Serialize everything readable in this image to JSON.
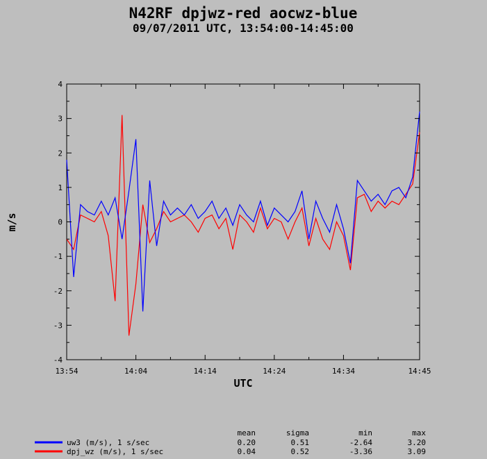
{
  "chart_data": {
    "type": "line",
    "title": "N42RF dpjwz-red aocwz-blue",
    "subtitle": "09/07/2011  UTC, 13:54:00-14:45:00",
    "xlabel": "UTC",
    "ylabel": "m/s",
    "x_ticks": [
      "13:54",
      "14:04",
      "14:14",
      "14:24",
      "14:34",
      "14:45"
    ],
    "xlim": [
      "13:54",
      "14:45"
    ],
    "y_ticks": [
      4,
      3,
      2,
      1,
      0,
      -1,
      -2,
      -3,
      -4
    ],
    "ylim": [
      -4,
      4
    ],
    "grid": false,
    "stats_headers": [
      "mean",
      "sigma",
      "min",
      "max"
    ],
    "series": [
      {
        "name": "uw3 (m/s), 1 s/sec",
        "color": "#0000ff",
        "mean": "0.20",
        "sigma": "0.51",
        "min": "-2.64",
        "max": "3.20",
        "x": [
          "13:54",
          "13:55",
          "13:56",
          "13:57",
          "13:58",
          "13:59",
          "14:00",
          "14:01",
          "14:02",
          "14:03",
          "14:04",
          "14:05",
          "14:06",
          "14:07",
          "14:08",
          "14:09",
          "14:10",
          "14:11",
          "14:12",
          "14:13",
          "14:14",
          "14:15",
          "14:16",
          "14:17",
          "14:18",
          "14:19",
          "14:20",
          "14:21",
          "14:22",
          "14:23",
          "14:24",
          "14:25",
          "14:26",
          "14:27",
          "14:28",
          "14:29",
          "14:30",
          "14:31",
          "14:32",
          "14:33",
          "14:34",
          "14:35",
          "14:36",
          "14:37",
          "14:38",
          "14:39",
          "14:40",
          "14:41",
          "14:42",
          "14:43",
          "14:44",
          "14:45"
        ],
        "values": [
          1.8,
          -1.6,
          0.5,
          0.3,
          0.2,
          0.6,
          0.2,
          0.7,
          -0.5,
          0.9,
          2.4,
          -2.6,
          1.2,
          -0.7,
          0.6,
          0.2,
          0.4,
          0.2,
          0.5,
          0.1,
          0.3,
          0.6,
          0.1,
          0.4,
          -0.1,
          0.5,
          0.2,
          0.0,
          0.6,
          -0.1,
          0.4,
          0.2,
          0.0,
          0.3,
          0.9,
          -0.5,
          0.6,
          0.1,
          -0.3,
          0.5,
          -0.2,
          -1.2,
          1.2,
          0.9,
          0.6,
          0.8,
          0.5,
          0.9,
          1.0,
          0.7,
          1.3,
          3.2
        ]
      },
      {
        "name": "dpj_wz (m/s), 1 s/sec",
        "color": "#ff0000",
        "mean": "0.04",
        "sigma": "0.52",
        "min": "-3.36",
        "max": "3.09",
        "x": [
          "13:54",
          "13:55",
          "13:56",
          "13:57",
          "13:58",
          "13:59",
          "14:00",
          "14:01",
          "14:02",
          "14:03",
          "14:04",
          "14:05",
          "14:06",
          "14:07",
          "14:08",
          "14:09",
          "14:10",
          "14:11",
          "14:12",
          "14:13",
          "14:14",
          "14:15",
          "14:16",
          "14:17",
          "14:18",
          "14:19",
          "14:20",
          "14:21",
          "14:22",
          "14:23",
          "14:24",
          "14:25",
          "14:26",
          "14:27",
          "14:28",
          "14:29",
          "14:30",
          "14:31",
          "14:32",
          "14:33",
          "14:34",
          "14:35",
          "14:36",
          "14:37",
          "14:38",
          "14:39",
          "14:40",
          "14:41",
          "14:42",
          "14:43",
          "14:44",
          "14:45"
        ],
        "values": [
          -0.5,
          -0.8,
          0.2,
          0.1,
          0.0,
          0.3,
          -0.4,
          -2.3,
          3.1,
          -3.3,
          -1.8,
          0.5,
          -0.6,
          -0.2,
          0.3,
          0.0,
          0.1,
          0.2,
          0.0,
          -0.3,
          0.1,
          0.2,
          -0.2,
          0.1,
          -0.8,
          0.2,
          0.0,
          -0.3,
          0.4,
          -0.2,
          0.1,
          0.0,
          -0.5,
          0.0,
          0.4,
          -0.7,
          0.1,
          -0.5,
          -0.8,
          0.0,
          -0.4,
          -1.4,
          0.7,
          0.8,
          0.3,
          0.6,
          0.4,
          0.6,
          0.5,
          0.8,
          1.1,
          2.6
        ]
      }
    ]
  }
}
